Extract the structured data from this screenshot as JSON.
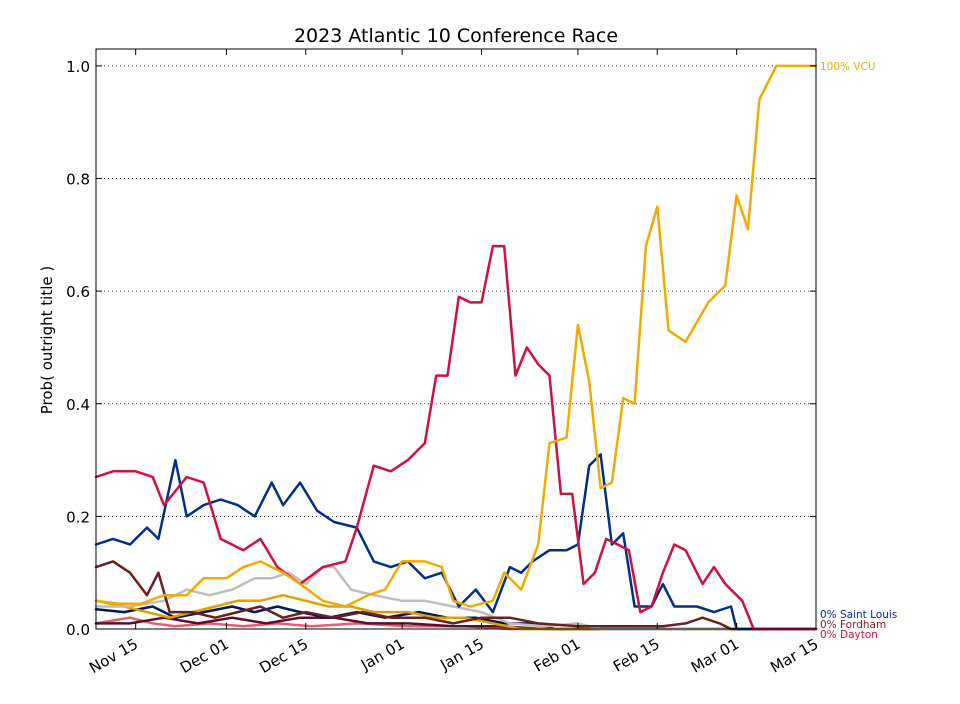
{
  "chart_data": {
    "type": "line",
    "title": "2023 Atlantic 10 Conference Race",
    "ylabel": "Prob( outright title )",
    "xlabel": "",
    "xlim": [
      "2022-11-08",
      "2023-03-15"
    ],
    "ylim": [
      0.0,
      1.03
    ],
    "x_ticks": [
      {
        "date": "2022-11-15",
        "label": "Nov 15"
      },
      {
        "date": "2022-12-01",
        "label": "Dec 01"
      },
      {
        "date": "2022-12-15",
        "label": "Dec 15"
      },
      {
        "date": "2023-01-01",
        "label": "Jan 01"
      },
      {
        "date": "2023-01-15",
        "label": "Jan 15"
      },
      {
        "date": "2023-02-01",
        "label": "Feb 01"
      },
      {
        "date": "2023-02-15",
        "label": "Feb 15"
      },
      {
        "date": "2023-03-01",
        "label": "Mar 01"
      },
      {
        "date": "2023-03-15",
        "label": "Mar 15"
      }
    ],
    "y_ticks": [
      0.0,
      0.2,
      0.4,
      0.6,
      0.8,
      1.0
    ],
    "y_tick_labels": [
      "0.0",
      "0.2",
      "0.4",
      "0.6",
      "0.8",
      "1.0"
    ],
    "grid": "horizontal dotted",
    "end_labels": [
      {
        "text": "100% VCU",
        "y": 1.0,
        "color": "#F0AB00"
      },
      {
        "text": "0% Saint Louis",
        "y": 0.0,
        "color": "#002F87"
      },
      {
        "text": "0% Fordham",
        "y": 0.0,
        "color": "#7B1F1F"
      },
      {
        "text": "0% Dayton",
        "y": 0.0,
        "color": "#CE1141"
      }
    ],
    "series": [
      {
        "name": "VCU",
        "color": "#F0AB00",
        "points": [
          [
            "2022-11-08",
            0.05
          ],
          [
            "2022-11-12",
            0.045
          ],
          [
            "2022-11-16",
            0.045
          ],
          [
            "2022-11-20",
            0.06
          ],
          [
            "2022-11-24",
            0.06
          ],
          [
            "2022-11-27",
            0.09
          ],
          [
            "2022-12-01",
            0.09
          ],
          [
            "2022-12-04",
            0.11
          ],
          [
            "2022-12-07",
            0.12
          ],
          [
            "2022-12-11",
            0.1
          ],
          [
            "2022-12-14",
            0.08
          ],
          [
            "2022-12-18",
            0.05
          ],
          [
            "2022-12-22",
            0.04
          ],
          [
            "2022-12-26",
            0.06
          ],
          [
            "2022-12-29",
            0.07
          ],
          [
            "2023-01-01",
            0.12
          ],
          [
            "2023-01-05",
            0.12
          ],
          [
            "2023-01-08",
            0.11
          ],
          [
            "2023-01-10",
            0.05
          ],
          [
            "2023-01-13",
            0.04
          ],
          [
            "2023-01-17",
            0.05
          ],
          [
            "2023-01-19",
            0.1
          ],
          [
            "2023-01-22",
            0.07
          ],
          [
            "2023-01-25",
            0.15
          ],
          [
            "2023-01-27",
            0.33
          ],
          [
            "2023-01-30",
            0.34
          ],
          [
            "2023-02-01",
            0.54
          ],
          [
            "2023-02-03",
            0.44
          ],
          [
            "2023-02-05",
            0.25
          ],
          [
            "2023-02-07",
            0.26
          ],
          [
            "2023-02-09",
            0.41
          ],
          [
            "2023-02-11",
            0.4
          ],
          [
            "2023-02-13",
            0.68
          ],
          [
            "2023-02-15",
            0.75
          ],
          [
            "2023-02-17",
            0.53
          ],
          [
            "2023-02-20",
            0.51
          ],
          [
            "2023-02-24",
            0.58
          ],
          [
            "2023-02-27",
            0.61
          ],
          [
            "2023-03-01",
            0.77
          ],
          [
            "2023-03-03",
            0.71
          ],
          [
            "2023-03-05",
            0.94
          ],
          [
            "2023-03-08",
            1.0
          ],
          [
            "2023-03-15",
            1.0
          ]
        ]
      },
      {
        "name": "Dayton",
        "color": "#CE1141",
        "points": [
          [
            "2022-11-08",
            0.27
          ],
          [
            "2022-11-11",
            0.28
          ],
          [
            "2022-11-15",
            0.28
          ],
          [
            "2022-11-18",
            0.27
          ],
          [
            "2022-11-20",
            0.22
          ],
          [
            "2022-11-24",
            0.27
          ],
          [
            "2022-11-27",
            0.26
          ],
          [
            "2022-11-30",
            0.16
          ],
          [
            "2022-12-04",
            0.14
          ],
          [
            "2022-12-07",
            0.16
          ],
          [
            "2022-12-10",
            0.11
          ],
          [
            "2022-12-14",
            0.08
          ],
          [
            "2022-12-18",
            0.11
          ],
          [
            "2022-12-22",
            0.12
          ],
          [
            "2022-12-24",
            0.18
          ],
          [
            "2022-12-27",
            0.29
          ],
          [
            "2022-12-30",
            0.28
          ],
          [
            "2023-01-02",
            0.3
          ],
          [
            "2023-01-05",
            0.33
          ],
          [
            "2023-01-07",
            0.45
          ],
          [
            "2023-01-09",
            0.45
          ],
          [
            "2023-01-11",
            0.59
          ],
          [
            "2023-01-13",
            0.58
          ],
          [
            "2023-01-15",
            0.58
          ],
          [
            "2023-01-17",
            0.68
          ],
          [
            "2023-01-19",
            0.68
          ],
          [
            "2023-01-21",
            0.45
          ],
          [
            "2023-01-23",
            0.5
          ],
          [
            "2023-01-25",
            0.47
          ],
          [
            "2023-01-27",
            0.45
          ],
          [
            "2023-01-29",
            0.24
          ],
          [
            "2023-01-31",
            0.24
          ],
          [
            "2023-02-02",
            0.08
          ],
          [
            "2023-02-04",
            0.1
          ],
          [
            "2023-02-06",
            0.16
          ],
          [
            "2023-02-08",
            0.15
          ],
          [
            "2023-02-10",
            0.14
          ],
          [
            "2023-02-12",
            0.03
          ],
          [
            "2023-02-14",
            0.04
          ],
          [
            "2023-02-16",
            0.1
          ],
          [
            "2023-02-18",
            0.15
          ],
          [
            "2023-02-20",
            0.14
          ],
          [
            "2023-02-23",
            0.08
          ],
          [
            "2023-02-25",
            0.11
          ],
          [
            "2023-02-27",
            0.08
          ],
          [
            "2023-02-29",
            0.06
          ],
          [
            "2023-03-02",
            0.05
          ],
          [
            "2023-03-04",
            0.0
          ],
          [
            "2023-03-15",
            0.0
          ]
        ]
      },
      {
        "name": "Saint Louis",
        "color": "#002F87",
        "points": [
          [
            "2022-11-08",
            0.15
          ],
          [
            "2022-11-11",
            0.16
          ],
          [
            "2022-11-14",
            0.15
          ],
          [
            "2022-11-17",
            0.18
          ],
          [
            "2022-11-19",
            0.16
          ],
          [
            "2022-11-22",
            0.3
          ],
          [
            "2022-11-24",
            0.2
          ],
          [
            "2022-11-27",
            0.22
          ],
          [
            "2022-11-30",
            0.23
          ],
          [
            "2022-12-03",
            0.22
          ],
          [
            "2022-12-06",
            0.2
          ],
          [
            "2022-12-09",
            0.26
          ],
          [
            "2022-12-11",
            0.22
          ],
          [
            "2022-12-14",
            0.26
          ],
          [
            "2022-12-17",
            0.21
          ],
          [
            "2022-12-20",
            0.19
          ],
          [
            "2022-12-24",
            0.18
          ],
          [
            "2022-12-27",
            0.12
          ],
          [
            "2022-12-30",
            0.11
          ],
          [
            "2023-01-02",
            0.12
          ],
          [
            "2023-01-05",
            0.09
          ],
          [
            "2023-01-08",
            0.1
          ],
          [
            "2023-01-11",
            0.04
          ],
          [
            "2023-01-14",
            0.07
          ],
          [
            "2023-01-17",
            0.03
          ],
          [
            "2023-01-20",
            0.11
          ],
          [
            "2023-01-22",
            0.1
          ],
          [
            "2023-01-24",
            0.12
          ],
          [
            "2023-01-27",
            0.14
          ],
          [
            "2023-01-30",
            0.14
          ],
          [
            "2023-02-01",
            0.15
          ],
          [
            "2023-02-03",
            0.29
          ],
          [
            "2023-02-05",
            0.31
          ],
          [
            "2023-02-07",
            0.15
          ],
          [
            "2023-02-09",
            0.17
          ],
          [
            "2023-02-11",
            0.04
          ],
          [
            "2023-02-14",
            0.04
          ],
          [
            "2023-02-16",
            0.08
          ],
          [
            "2023-02-18",
            0.04
          ],
          [
            "2023-02-22",
            0.04
          ],
          [
            "2023-02-25",
            0.03
          ],
          [
            "2023-02-28",
            0.04
          ],
          [
            "2023-03-01",
            0.0
          ],
          [
            "2023-03-15",
            0.0
          ]
        ]
      },
      {
        "name": "Fordham",
        "color": "#6B1F1F",
        "points": [
          [
            "2022-11-08",
            0.11
          ],
          [
            "2022-11-11",
            0.12
          ],
          [
            "2022-11-14",
            0.1
          ],
          [
            "2022-11-17",
            0.06
          ],
          [
            "2022-11-19",
            0.1
          ],
          [
            "2022-11-21",
            0.03
          ],
          [
            "2022-11-25",
            0.03
          ],
          [
            "2022-11-29",
            0.02
          ],
          [
            "2022-12-03",
            0.03
          ],
          [
            "2022-12-07",
            0.04
          ],
          [
            "2022-12-11",
            0.02
          ],
          [
            "2022-12-15",
            0.03
          ],
          [
            "2022-12-20",
            0.02
          ],
          [
            "2022-12-25",
            0.03
          ],
          [
            "2022-12-30",
            0.02
          ],
          [
            "2023-01-05",
            0.02
          ],
          [
            "2023-01-10",
            0.01
          ],
          [
            "2023-01-15",
            0.02
          ],
          [
            "2023-01-20",
            0.02
          ],
          [
            "2023-01-25",
            0.01
          ],
          [
            "2023-02-01",
            0.005
          ],
          [
            "2023-02-10",
            0.005
          ],
          [
            "2023-02-16",
            0.005
          ],
          [
            "2023-02-20",
            0.01
          ],
          [
            "2023-02-23",
            0.02
          ],
          [
            "2023-02-26",
            0.01
          ],
          [
            "2023-02-28",
            0.0
          ],
          [
            "2023-03-15",
            0.0
          ]
        ]
      },
      {
        "name": "",
        "color": "#BDBDBD",
        "points": [
          [
            "2022-11-08",
            0.04
          ],
          [
            "2022-11-14",
            0.04
          ],
          [
            "2022-11-20",
            0.05
          ],
          [
            "2022-11-24",
            0.07
          ],
          [
            "2022-11-28",
            0.06
          ],
          [
            "2022-12-02",
            0.07
          ],
          [
            "2022-12-06",
            0.09
          ],
          [
            "2022-12-09",
            0.09
          ],
          [
            "2022-12-12",
            0.1
          ],
          [
            "2022-12-15",
            0.08
          ],
          [
            "2022-12-18",
            0.11
          ],
          [
            "2022-12-20",
            0.11
          ],
          [
            "2022-12-23",
            0.07
          ],
          [
            "2022-12-27",
            0.06
          ],
          [
            "2023-01-01",
            0.05
          ],
          [
            "2023-01-05",
            0.05
          ],
          [
            "2023-01-10",
            0.04
          ],
          [
            "2023-01-15",
            0.03
          ],
          [
            "2023-01-20",
            0.01
          ],
          [
            "2023-01-26",
            0.005
          ],
          [
            "2023-02-01",
            0.01
          ],
          [
            "2023-02-05",
            0.0
          ],
          [
            "2023-03-15",
            0.0
          ]
        ]
      },
      {
        "name": "",
        "color": "#E0A000",
        "points": [
          [
            "2022-11-08",
            0.05
          ],
          [
            "2022-11-13",
            0.04
          ],
          [
            "2022-11-17",
            0.03
          ],
          [
            "2022-11-21",
            0.02
          ],
          [
            "2022-11-25",
            0.03
          ],
          [
            "2022-11-29",
            0.04
          ],
          [
            "2022-12-03",
            0.05
          ],
          [
            "2022-12-07",
            0.05
          ],
          [
            "2022-12-11",
            0.06
          ],
          [
            "2022-12-15",
            0.05
          ],
          [
            "2022-12-19",
            0.04
          ],
          [
            "2022-12-23",
            0.04
          ],
          [
            "2022-12-27",
            0.03
          ],
          [
            "2023-01-02",
            0.03
          ],
          [
            "2023-01-07",
            0.02
          ],
          [
            "2023-01-12",
            0.02
          ],
          [
            "2023-01-17",
            0.01
          ],
          [
            "2023-01-22",
            0.0
          ],
          [
            "2023-03-15",
            0.0
          ]
        ]
      },
      {
        "name": "",
        "color": "#001A57",
        "points": [
          [
            "2022-11-08",
            0.035
          ],
          [
            "2022-11-13",
            0.03
          ],
          [
            "2022-11-18",
            0.04
          ],
          [
            "2022-11-22",
            0.02
          ],
          [
            "2022-11-27",
            0.03
          ],
          [
            "2022-12-02",
            0.04
          ],
          [
            "2022-12-06",
            0.03
          ],
          [
            "2022-12-10",
            0.04
          ],
          [
            "2022-12-14",
            0.03
          ],
          [
            "2022-12-19",
            0.02
          ],
          [
            "2022-12-24",
            0.03
          ],
          [
            "2022-12-29",
            0.02
          ],
          [
            "2023-01-04",
            0.03
          ],
          [
            "2023-01-09",
            0.02
          ],
          [
            "2023-01-14",
            0.02
          ],
          [
            "2023-01-19",
            0.01
          ],
          [
            "2023-01-24",
            0.01
          ],
          [
            "2023-01-28",
            0.0
          ],
          [
            "2023-03-15",
            0.0
          ]
        ]
      },
      {
        "name": "",
        "color": "#5A0F2B",
        "points": [
          [
            "2022-11-08",
            0.01
          ],
          [
            "2022-11-14",
            0.01
          ],
          [
            "2022-11-20",
            0.02
          ],
          [
            "2022-11-26",
            0.01
          ],
          [
            "2022-12-02",
            0.02
          ],
          [
            "2022-12-08",
            0.01
          ],
          [
            "2022-12-14",
            0.02
          ],
          [
            "2022-12-20",
            0.02
          ],
          [
            "2022-12-26",
            0.01
          ],
          [
            "2023-01-02",
            0.01
          ],
          [
            "2023-01-10",
            0.005
          ],
          [
            "2023-01-18",
            0.005
          ],
          [
            "2023-01-26",
            0.0
          ],
          [
            "2023-03-15",
            0.0
          ]
        ]
      },
      {
        "name": "",
        "color": "#E06070",
        "points": [
          [
            "2022-11-08",
            0.01
          ],
          [
            "2022-11-14",
            0.02
          ],
          [
            "2022-11-18",
            0.01
          ],
          [
            "2022-11-22",
            0.005
          ],
          [
            "2022-11-28",
            0.01
          ],
          [
            "2022-12-04",
            0.005
          ],
          [
            "2022-12-10",
            0.01
          ],
          [
            "2022-12-16",
            0.005
          ],
          [
            "2022-12-24",
            0.01
          ],
          [
            "2023-01-02",
            0.005
          ],
          [
            "2023-01-12",
            0.005
          ],
          [
            "2023-01-20",
            0.0
          ],
          [
            "2023-03-15",
            0.0
          ]
        ]
      }
    ]
  }
}
